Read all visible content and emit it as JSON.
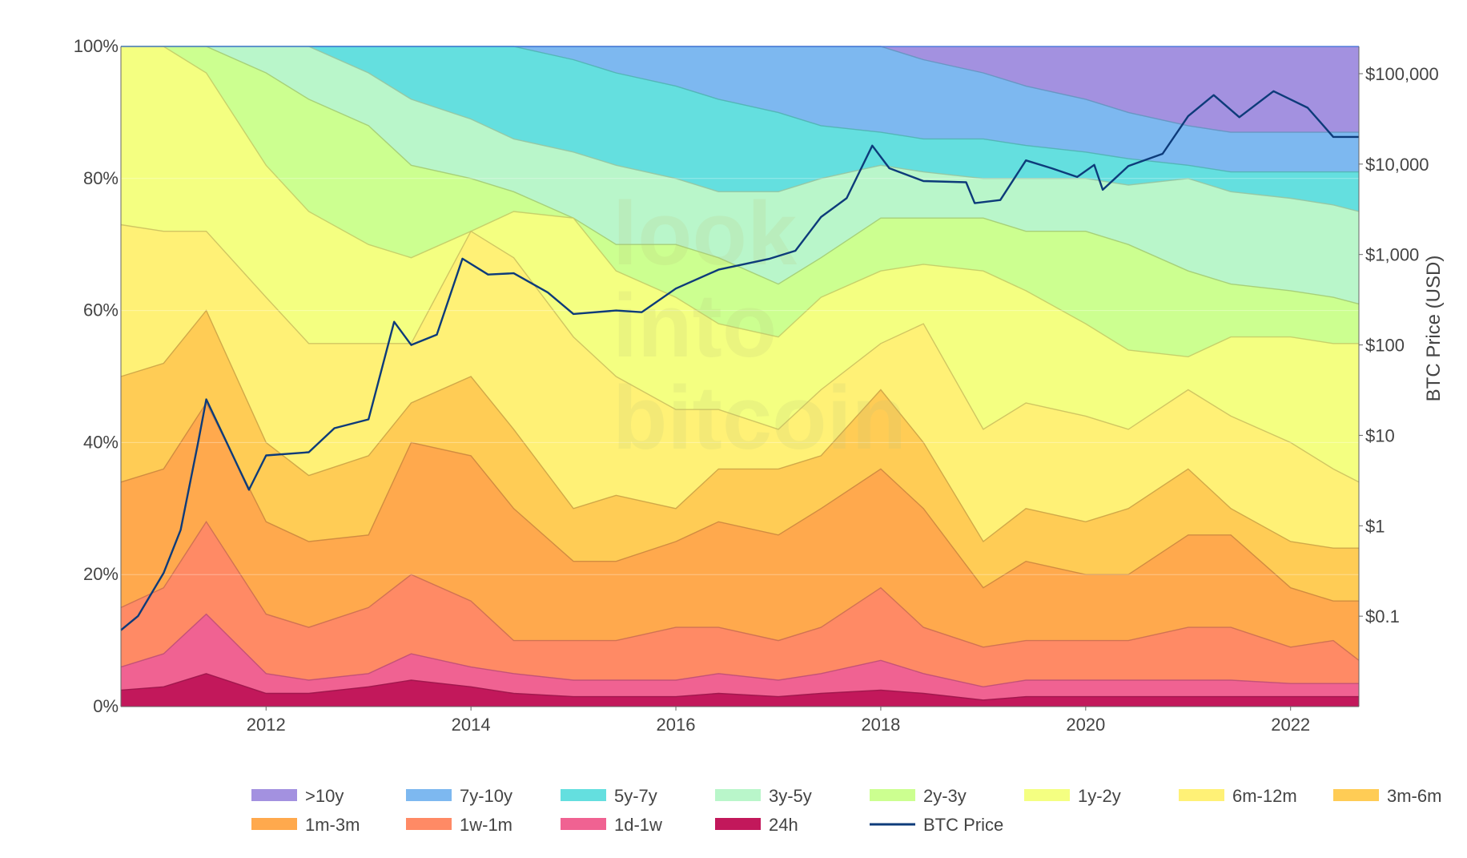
{
  "watermark": [
    "look",
    "into",
    "bitcoin"
  ],
  "chart_data": {
    "type": "area",
    "stacking": "percent",
    "x_range": [
      "2010-08-01",
      "2022-09-01"
    ],
    "x_ticks": [
      "2012",
      "2014",
      "2016",
      "2018",
      "2020",
      "2022"
    ],
    "y_left": {
      "range": [
        0,
        100
      ],
      "ticks": [
        "0%",
        "20%",
        "40%",
        "60%",
        "80%",
        "100%"
      ]
    },
    "y_right": {
      "label": "BTC Price (USD)",
      "scale": "log",
      "range": [
        0.01,
        200000
      ],
      "ticks": [
        {
          "value": 0.1,
          "label": "$0.1"
        },
        {
          "value": 1,
          "label": "$1"
        },
        {
          "value": 10,
          "label": "$10"
        },
        {
          "value": 100,
          "label": "$100"
        },
        {
          "value": 1000,
          "label": "$1,000"
        },
        {
          "value": 10000,
          "label": "$10,000"
        },
        {
          "value": 100000,
          "label": "$100,000"
        }
      ]
    },
    "legend_position": "bottom",
    "x": [
      "2010-08",
      "2011-01",
      "2011-06",
      "2012-01",
      "2012-06",
      "2013-01",
      "2013-06",
      "2014-01",
      "2014-06",
      "2015-01",
      "2015-06",
      "2016-01",
      "2016-06",
      "2017-01",
      "2017-06",
      "2018-01",
      "2018-06",
      "2019-01",
      "2019-06",
      "2020-01",
      "2020-06",
      "2021-01",
      "2021-06",
      "2022-01",
      "2022-06",
      "2022-09"
    ],
    "bands": [
      {
        "name": "24h",
        "color": "#c2185b",
        "upper": [
          2.5,
          3,
          5,
          2,
          2,
          3,
          4,
          3,
          2,
          1.5,
          1.5,
          1.5,
          2,
          1.5,
          2,
          2.5,
          2,
          1,
          1.5,
          1.5,
          1.5,
          1.5,
          1.5,
          1.5,
          1.5,
          1.5
        ]
      },
      {
        "name": "1d-1w",
        "color": "#f06292",
        "upper": [
          6,
          8,
          14,
          5,
          4,
          5,
          8,
          6,
          5,
          4,
          4,
          4,
          5,
          4,
          5,
          7,
          5,
          3,
          4,
          4,
          4,
          4,
          4,
          3.5,
          3.5,
          3.5
        ]
      },
      {
        "name": "1w-1m",
        "color": "#ff8a65",
        "upper": [
          15,
          18,
          28,
          14,
          12,
          15,
          20,
          16,
          10,
          10,
          10,
          12,
          12,
          10,
          12,
          18,
          12,
          9,
          10,
          10,
          10,
          12,
          12,
          9,
          10,
          7
        ]
      },
      {
        "name": "1m-3m",
        "color": "#ffa94d",
        "upper": [
          34,
          36,
          46,
          28,
          25,
          26,
          40,
          38,
          30,
          22,
          22,
          25,
          28,
          26,
          30,
          36,
          30,
          18,
          22,
          20,
          20,
          26,
          26,
          18,
          16,
          16
        ]
      },
      {
        "name": "3m-6m",
        "color": "#ffcc55",
        "upper": [
          50,
          52,
          60,
          40,
          35,
          38,
          46,
          50,
          42,
          30,
          32,
          30,
          36,
          36,
          38,
          48,
          40,
          25,
          30,
          28,
          30,
          36,
          30,
          25,
          24,
          24
        ]
      },
      {
        "name": "6m-12m",
        "color": "#fff176",
        "upper": [
          73,
          72,
          72,
          62,
          55,
          55,
          55,
          72,
          68,
          56,
          50,
          45,
          45,
          42,
          48,
          55,
          58,
          42,
          46,
          44,
          42,
          48,
          44,
          40,
          36,
          34
        ]
      },
      {
        "name": "1y-2y",
        "color": "#f4ff81",
        "upper": [
          100,
          100,
          96,
          82,
          75,
          70,
          68,
          72,
          75,
          74,
          66,
          62,
          58,
          56,
          62,
          66,
          67,
          66,
          63,
          58,
          54,
          53,
          56,
          56,
          55,
          55
        ]
      },
      {
        "name": "2y-3y",
        "color": "#ccff90",
        "upper": [
          100,
          100,
          100,
          96,
          92,
          88,
          82,
          80,
          78,
          74,
          70,
          70,
          68,
          64,
          68,
          74,
          74,
          74,
          72,
          72,
          70,
          66,
          64,
          63,
          62,
          61
        ]
      },
      {
        "name": "3y-5y",
        "color": "#b9f6ca",
        "upper": [
          100,
          100,
          100,
          100,
          100,
          96,
          92,
          89,
          86,
          84,
          82,
          80,
          78,
          78,
          80,
          82,
          81,
          80,
          80,
          80,
          79,
          80,
          78,
          77,
          76,
          75
        ]
      },
      {
        "name": "5y-7y",
        "color": "#64dfdf",
        "upper": [
          100,
          100,
          100,
          100,
          100,
          100,
          100,
          100,
          100,
          98,
          96,
          94,
          92,
          90,
          88,
          87,
          86,
          86,
          85,
          84,
          83,
          82,
          81,
          81,
          81,
          81
        ]
      },
      {
        "name": "7y-10y",
        "color": "#7db8f0",
        "upper": [
          100,
          100,
          100,
          100,
          100,
          100,
          100,
          100,
          100,
          100,
          100,
          100,
          100,
          100,
          100,
          100,
          98,
          96,
          94,
          92,
          90,
          88,
          87,
          87,
          87,
          87
        ]
      },
      {
        "name": ">10y",
        "color": "#a391e0",
        "upper": [
          100,
          100,
          100,
          100,
          100,
          100,
          100,
          100,
          100,
          100,
          100,
          100,
          100,
          100,
          100,
          100,
          100,
          100,
          100,
          100,
          100,
          100,
          100,
          100,
          100,
          100
        ]
      }
    ],
    "price_series": {
      "name": "BTC Price",
      "color": "#0d3b7a",
      "points": [
        [
          "2010-08",
          0.07
        ],
        [
          "2010-10",
          0.1
        ],
        [
          "2011-01",
          0.3
        ],
        [
          "2011-03",
          0.9
        ],
        [
          "2011-05",
          8
        ],
        [
          "2011-06",
          25
        ],
        [
          "2011-08",
          10
        ],
        [
          "2011-11",
          2.5
        ],
        [
          "2012-01",
          6
        ],
        [
          "2012-06",
          6.5
        ],
        [
          "2012-09",
          12
        ],
        [
          "2013-01",
          15
        ],
        [
          "2013-04",
          180
        ],
        [
          "2013-06",
          100
        ],
        [
          "2013-09",
          130
        ],
        [
          "2013-12",
          900
        ],
        [
          "2014-03",
          600
        ],
        [
          "2014-06",
          620
        ],
        [
          "2014-10",
          380
        ],
        [
          "2015-01",
          220
        ],
        [
          "2015-06",
          240
        ],
        [
          "2015-09",
          230
        ],
        [
          "2016-01",
          420
        ],
        [
          "2016-06",
          680
        ],
        [
          "2016-12",
          900
        ],
        [
          "2017-03",
          1100
        ],
        [
          "2017-06",
          2600
        ],
        [
          "2017-09",
          4200
        ],
        [
          "2017-12",
          16000
        ],
        [
          "2018-02",
          9000
        ],
        [
          "2018-06",
          6500
        ],
        [
          "2018-11",
          6300
        ],
        [
          "2018-12",
          3700
        ],
        [
          "2019-03",
          4000
        ],
        [
          "2019-06",
          11000
        ],
        [
          "2019-09",
          9000
        ],
        [
          "2019-12",
          7200
        ],
        [
          "2020-02",
          9800
        ],
        [
          "2020-03",
          5200
        ],
        [
          "2020-06",
          9500
        ],
        [
          "2020-10",
          13000
        ],
        [
          "2021-01",
          34000
        ],
        [
          "2021-04",
          58000
        ],
        [
          "2021-07",
          33000
        ],
        [
          "2021-11",
          64000
        ],
        [
          "2022-03",
          42000
        ],
        [
          "2022-06",
          20000
        ],
        [
          "2022-09",
          20000
        ]
      ]
    },
    "legend": [
      ">10y",
      "7y-10y",
      "5y-7y",
      "3y-5y",
      "2y-3y",
      "1y-2y",
      "6m-12m",
      "3m-6m",
      "1m-3m",
      "1w-1m",
      "1d-1w",
      "24h",
      "BTC Price"
    ],
    "legend_colors": {
      ">10y": "#a391e0",
      "7y-10y": "#7db8f0",
      "5y-7y": "#64dfdf",
      "3y-5y": "#b9f6ca",
      "2y-3y": "#ccff90",
      "1y-2y": "#f4ff81",
      "6m-12m": "#fff176",
      "3m-6m": "#ffcc55",
      "1m-3m": "#ffa94d",
      "1w-1m": "#ff8a65",
      "1d-1w": "#f06292",
      "24h": "#c2185b",
      "BTC Price": "#0d3b7a"
    }
  }
}
